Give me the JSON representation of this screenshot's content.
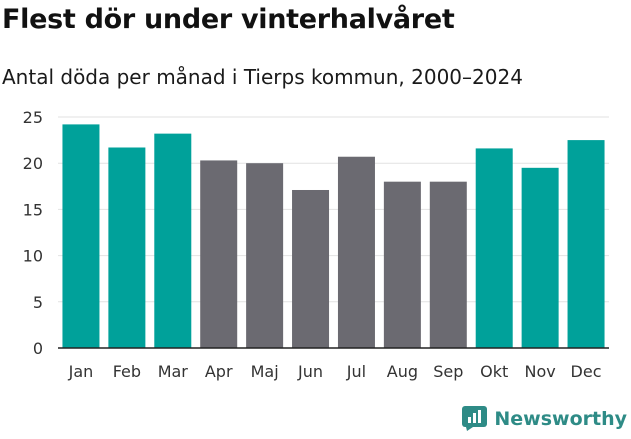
{
  "chart_data": {
    "type": "bar",
    "title": "Flest dör under vinterhalvåret",
    "subtitle": "Antal döda per månad i Tierps kommun, 2000–2024",
    "categories": [
      "Jan",
      "Feb",
      "Mar",
      "Apr",
      "Maj",
      "Jun",
      "Jul",
      "Aug",
      "Sep",
      "Okt",
      "Nov",
      "Dec"
    ],
    "values": [
      24.2,
      21.7,
      23.2,
      20.3,
      20.0,
      17.1,
      20.7,
      18.0,
      18.0,
      21.6,
      19.5,
      22.5
    ],
    "highlight": [
      true,
      true,
      true,
      false,
      false,
      false,
      false,
      false,
      false,
      true,
      true,
      true
    ],
    "ylim": [
      0,
      25
    ],
    "yticks": [
      0,
      5,
      10,
      15,
      20,
      25
    ],
    "xlabel": "",
    "ylabel": "",
    "grid": true,
    "colors": {
      "highlight": "#00a19a",
      "default": "#6b6a71",
      "grid": "#e2e2e2",
      "axis": "#222222"
    }
  },
  "brand": {
    "name": "Newsworthy",
    "icon": "newsworthy-logo-icon",
    "color": "#2e8b86"
  }
}
